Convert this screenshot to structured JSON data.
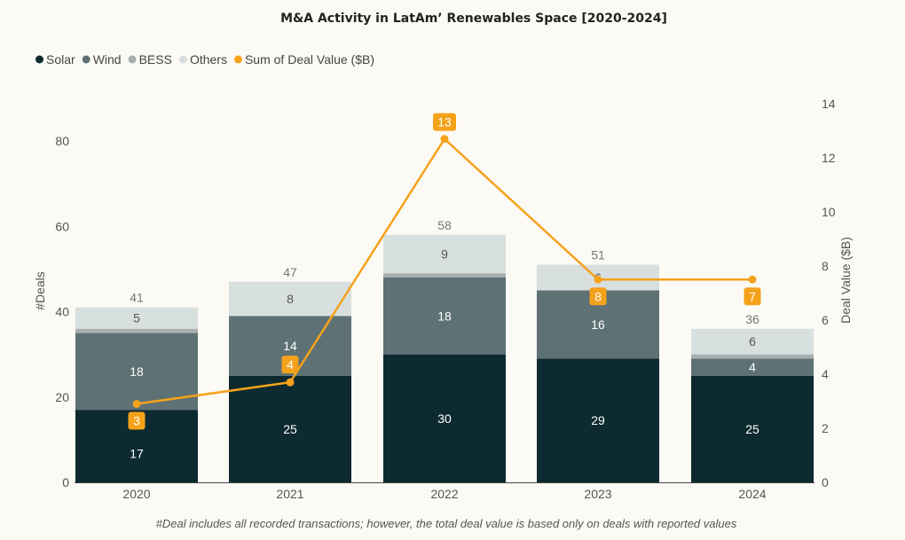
{
  "chart_data": {
    "type": "bar",
    "title": "M&A Activity in LatAm’ Renewables Space [2020-2024]",
    "categories": [
      "2020",
      "2021",
      "2022",
      "2023",
      "2024"
    ],
    "series": [
      {
        "name": "Solar",
        "values": [
          17,
          25,
          30,
          29,
          25
        ],
        "color": "#0c2a30",
        "labels": [
          "17",
          "25",
          "30",
          "29",
          "25"
        ],
        "label_color": "#ffffff"
      },
      {
        "name": "Wind",
        "values": [
          18,
          14,
          18,
          16,
          4
        ],
        "color": "#5e7175",
        "labels": [
          "18",
          "14",
          "18",
          "16",
          "4"
        ],
        "label_color": "#ffffff"
      },
      {
        "name": "BESS",
        "values": [
          1,
          0,
          1,
          0,
          1
        ],
        "color": "#a9aeae",
        "labels": [
          "",
          "",
          "",
          "",
          ""
        ],
        "label_color": "#555555"
      },
      {
        "name": "Others",
        "values": [
          5,
          8,
          9,
          6,
          6
        ],
        "color": "#d8dfdf",
        "labels": [
          "5",
          "8",
          "9",
          "6",
          "6"
        ],
        "label_color": "#555555"
      }
    ],
    "totals": [
      "41",
      "47",
      "58",
      "51",
      "36"
    ],
    "line_series": {
      "name": "Sum of Deal Value ($B)",
      "values": [
        2.9,
        3.7,
        12.7,
        7.5,
        7.5
      ],
      "labels": [
        "3",
        "4",
        "13",
        "8",
        "7"
      ],
      "color": "#f5a21b"
    },
    "ylabel": "#Deals",
    "y2label": "Deal Value ($B)",
    "ylim": [
      0,
      88
    ],
    "yticks": [
      0,
      20,
      40,
      60,
      80
    ],
    "y2lim": [
      0,
      14
    ],
    "y2ticks": [
      0,
      2,
      4,
      6,
      8,
      10,
      12,
      14
    ],
    "legend_position": "top-left",
    "grid": false,
    "footnote": "#Deal includes all recorded transactions; however, the total deal value is based only on deals with reported values"
  }
}
